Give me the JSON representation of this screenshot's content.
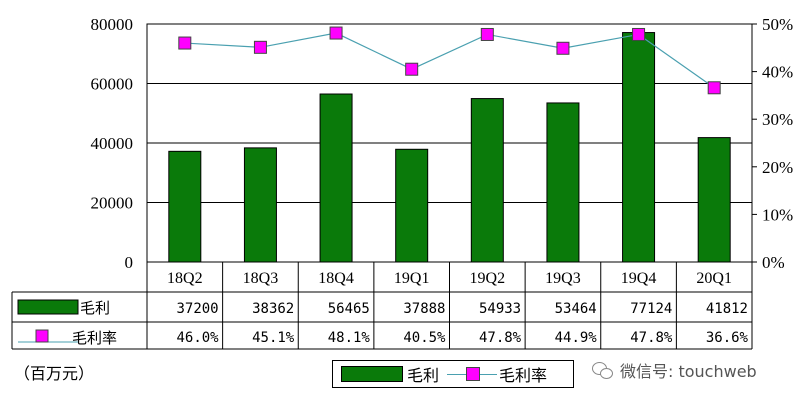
{
  "chart_data": {
    "type": "bar",
    "categories": [
      "18Q2",
      "18Q3",
      "18Q4",
      "19Q1",
      "19Q2",
      "19Q3",
      "19Q4",
      "20Q1"
    ],
    "series": [
      {
        "name": "毛利",
        "type": "bar",
        "axis": "left",
        "values": [
          37200,
          38362,
          56465,
          37888,
          54933,
          53464,
          77124,
          41812
        ],
        "labels": [
          "37200",
          "38362",
          "56465",
          "37888",
          "54933",
          "53464",
          "77124",
          "41812"
        ],
        "color": "#0a7a0a"
      },
      {
        "name": "毛利率",
        "type": "line",
        "axis": "right",
        "values": [
          46.0,
          45.1,
          48.1,
          40.5,
          47.8,
          44.9,
          47.8,
          36.6
        ],
        "labels": [
          "46.0%",
          "45.1%",
          "48.1%",
          "40.5%",
          "47.8%",
          "44.9%",
          "47.8%",
          "36.6%"
        ],
        "color": "#4aa0b0",
        "marker_color": "#ff00ff"
      }
    ],
    "y_left": {
      "range": [
        0,
        80000
      ],
      "ticks": [
        "0",
        "20000",
        "40000",
        "60000",
        "80000"
      ]
    },
    "y_right": {
      "range": [
        0,
        50
      ],
      "ticks": [
        "0%",
        "10%",
        "20%",
        "30%",
        "40%",
        "50%"
      ]
    },
    "grid": true,
    "data_table": true,
    "legend_position": "bottom",
    "unit_label": "（百万元）"
  },
  "watermark": "微信号: touchweb"
}
